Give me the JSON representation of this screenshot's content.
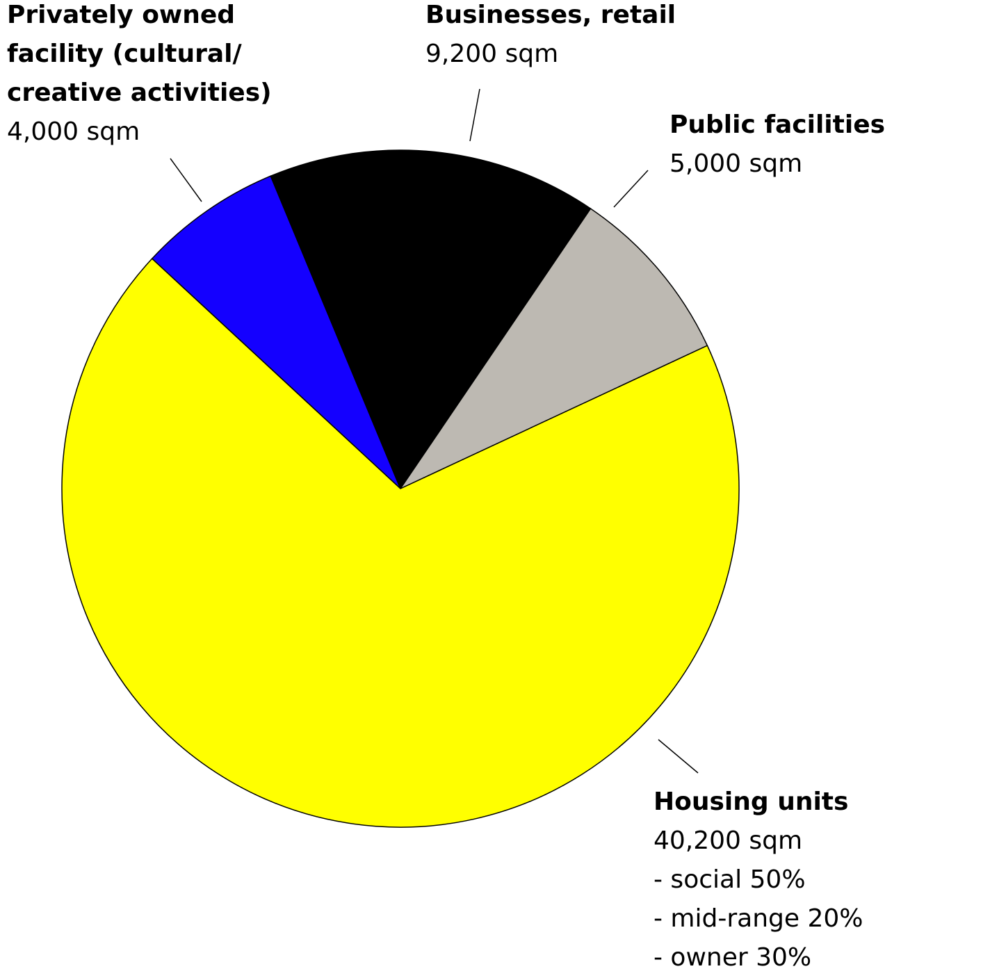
{
  "chart_data": {
    "type": "pie",
    "categories": [
      "Privately owned facility (cultural/ creative activities)",
      "Businesses, retail",
      "Public facilities",
      "Housing units"
    ],
    "values": [
      4000,
      9200,
      5000,
      40200
    ],
    "value_labels": [
      "4,000 sqm",
      "9,200 sqm",
      "5,000 sqm",
      "40,200 sqm"
    ],
    "colors": [
      "#1400ff",
      "#000000",
      "#bdb9b2",
      "#ffff00"
    ],
    "details": [
      [],
      [],
      [],
      [
        "- social 50%",
        "- mid-range 20%",
        "- owner 30%"
      ]
    ]
  }
}
